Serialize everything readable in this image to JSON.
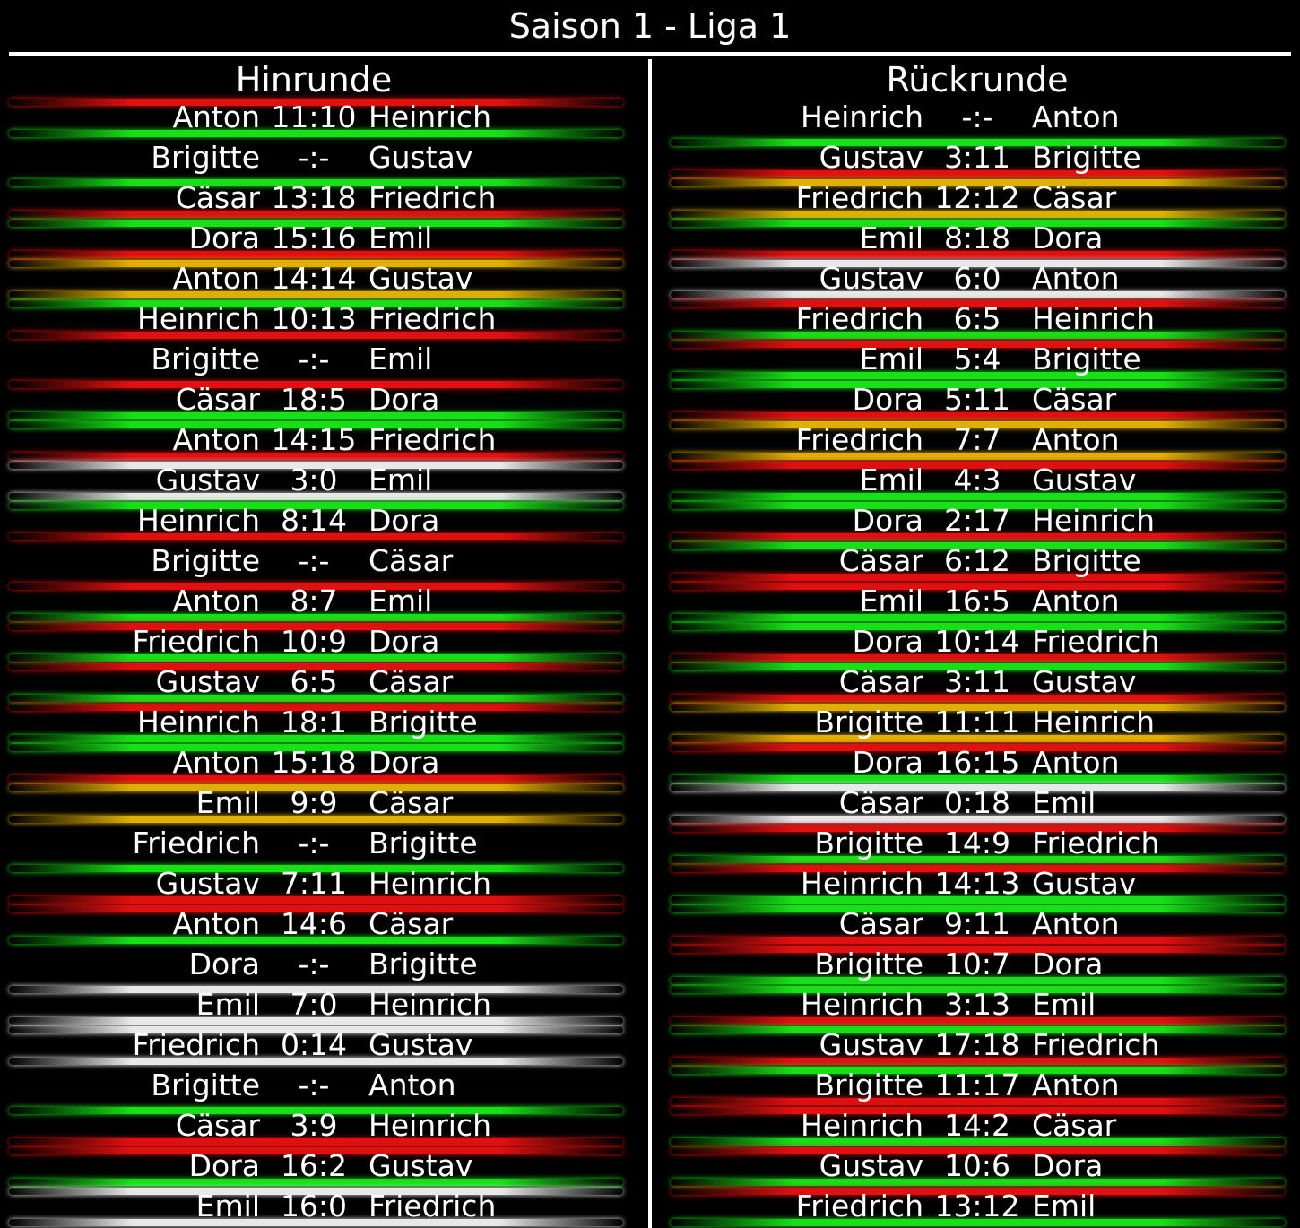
{
  "title": "Saison 1 - Liga 1",
  "colors": {
    "win": "#17e017",
    "loss": "#e01010",
    "draw": "#e0b000",
    "zero": "#e8e8e8",
    "background": "#000000",
    "text": "#ffffff"
  },
  "hinrunde": {
    "heading": "Hinrunde",
    "matches": [
      {
        "home": "Anton",
        "score": "11:10",
        "away": "Heinrich"
      },
      {
        "home": "Brigitte",
        "score": "-:-",
        "away": "Gustav"
      },
      {
        "home": "Cäsar",
        "score": "13:18",
        "away": "Friedrich"
      },
      {
        "home": "Dora",
        "score": "15:16",
        "away": "Emil"
      },
      {
        "home": "Anton",
        "score": "14:14",
        "away": "Gustav"
      },
      {
        "home": "Heinrich",
        "score": "10:13",
        "away": "Friedrich"
      },
      {
        "home": "Brigitte",
        "score": "-:-",
        "away": "Emil"
      },
      {
        "home": "Cäsar",
        "score": "18:5",
        "away": "Dora"
      },
      {
        "home": "Anton",
        "score": "14:15",
        "away": "Friedrich"
      },
      {
        "home": "Gustav",
        "score": "3:0",
        "away": "Emil"
      },
      {
        "home": "Heinrich",
        "score": "8:14",
        "away": "Dora"
      },
      {
        "home": "Brigitte",
        "score": "-:-",
        "away": "Cäsar"
      },
      {
        "home": "Anton",
        "score": "8:7",
        "away": "Emil"
      },
      {
        "home": "Friedrich",
        "score": "10:9",
        "away": "Dora"
      },
      {
        "home": "Gustav",
        "score": "6:5",
        "away": "Cäsar"
      },
      {
        "home": "Heinrich",
        "score": "18:1",
        "away": "Brigitte"
      },
      {
        "home": "Anton",
        "score": "15:18",
        "away": "Dora"
      },
      {
        "home": "Emil",
        "score": "9:9",
        "away": "Cäsar"
      },
      {
        "home": "Friedrich",
        "score": "-:-",
        "away": "Brigitte"
      },
      {
        "home": "Gustav",
        "score": "7:11",
        "away": "Heinrich"
      },
      {
        "home": "Anton",
        "score": "14:6",
        "away": "Cäsar"
      },
      {
        "home": "Dora",
        "score": "-:-",
        "away": "Brigitte"
      },
      {
        "home": "Emil",
        "score": "7:0",
        "away": "Heinrich"
      },
      {
        "home": "Friedrich",
        "score": "0:14",
        "away": "Gustav"
      },
      {
        "home": "Brigitte",
        "score": "-:-",
        "away": "Anton"
      },
      {
        "home": "Cäsar",
        "score": "3:9",
        "away": "Heinrich"
      },
      {
        "home": "Dora",
        "score": "16:2",
        "away": "Gustav"
      },
      {
        "home": "Emil",
        "score": "16:0",
        "away": "Friedrich"
      }
    ]
  },
  "rueckrunde": {
    "heading": "Rückrunde",
    "matches": [
      {
        "home": "Heinrich",
        "score": "-:-",
        "away": "Anton"
      },
      {
        "home": "Gustav",
        "score": "3:11",
        "away": "Brigitte"
      },
      {
        "home": "Friedrich",
        "score": "12:12",
        "away": "Cäsar"
      },
      {
        "home": "Emil",
        "score": "8:18",
        "away": "Dora"
      },
      {
        "home": "Gustav",
        "score": "6:0",
        "away": "Anton"
      },
      {
        "home": "Friedrich",
        "score": "6:5",
        "away": "Heinrich"
      },
      {
        "home": "Emil",
        "score": "5:4",
        "away": "Brigitte"
      },
      {
        "home": "Dora",
        "score": "5:11",
        "away": "Cäsar"
      },
      {
        "home": "Friedrich",
        "score": "7:7",
        "away": "Anton"
      },
      {
        "home": "Emil",
        "score": "4:3",
        "away": "Gustav"
      },
      {
        "home": "Dora",
        "score": "2:17",
        "away": "Heinrich"
      },
      {
        "home": "Cäsar",
        "score": "6:12",
        "away": "Brigitte"
      },
      {
        "home": "Emil",
        "score": "16:5",
        "away": "Anton"
      },
      {
        "home": "Dora",
        "score": "10:14",
        "away": "Friedrich"
      },
      {
        "home": "Cäsar",
        "score": "3:11",
        "away": "Gustav"
      },
      {
        "home": "Brigitte",
        "score": "11:11",
        "away": "Heinrich"
      },
      {
        "home": "Dora",
        "score": "16:15",
        "away": "Anton"
      },
      {
        "home": "Cäsar",
        "score": "0:18",
        "away": "Emil"
      },
      {
        "home": "Brigitte",
        "score": "14:9",
        "away": "Friedrich"
      },
      {
        "home": "Heinrich",
        "score": "14:13",
        "away": "Gustav"
      },
      {
        "home": "Cäsar",
        "score": "9:11",
        "away": "Anton"
      },
      {
        "home": "Brigitte",
        "score": "10:7",
        "away": "Dora"
      },
      {
        "home": "Heinrich",
        "score": "3:13",
        "away": "Emil"
      },
      {
        "home": "Gustav",
        "score": "17:18",
        "away": "Friedrich"
      },
      {
        "home": "Brigitte",
        "score": "11:17",
        "away": "Anton"
      },
      {
        "home": "Heinrich",
        "score": "14:2",
        "away": "Cäsar"
      },
      {
        "home": "Gustav",
        "score": "10:6",
        "away": "Dora"
      },
      {
        "home": "Friedrich",
        "score": "13:12",
        "away": "Emil"
      }
    ]
  }
}
